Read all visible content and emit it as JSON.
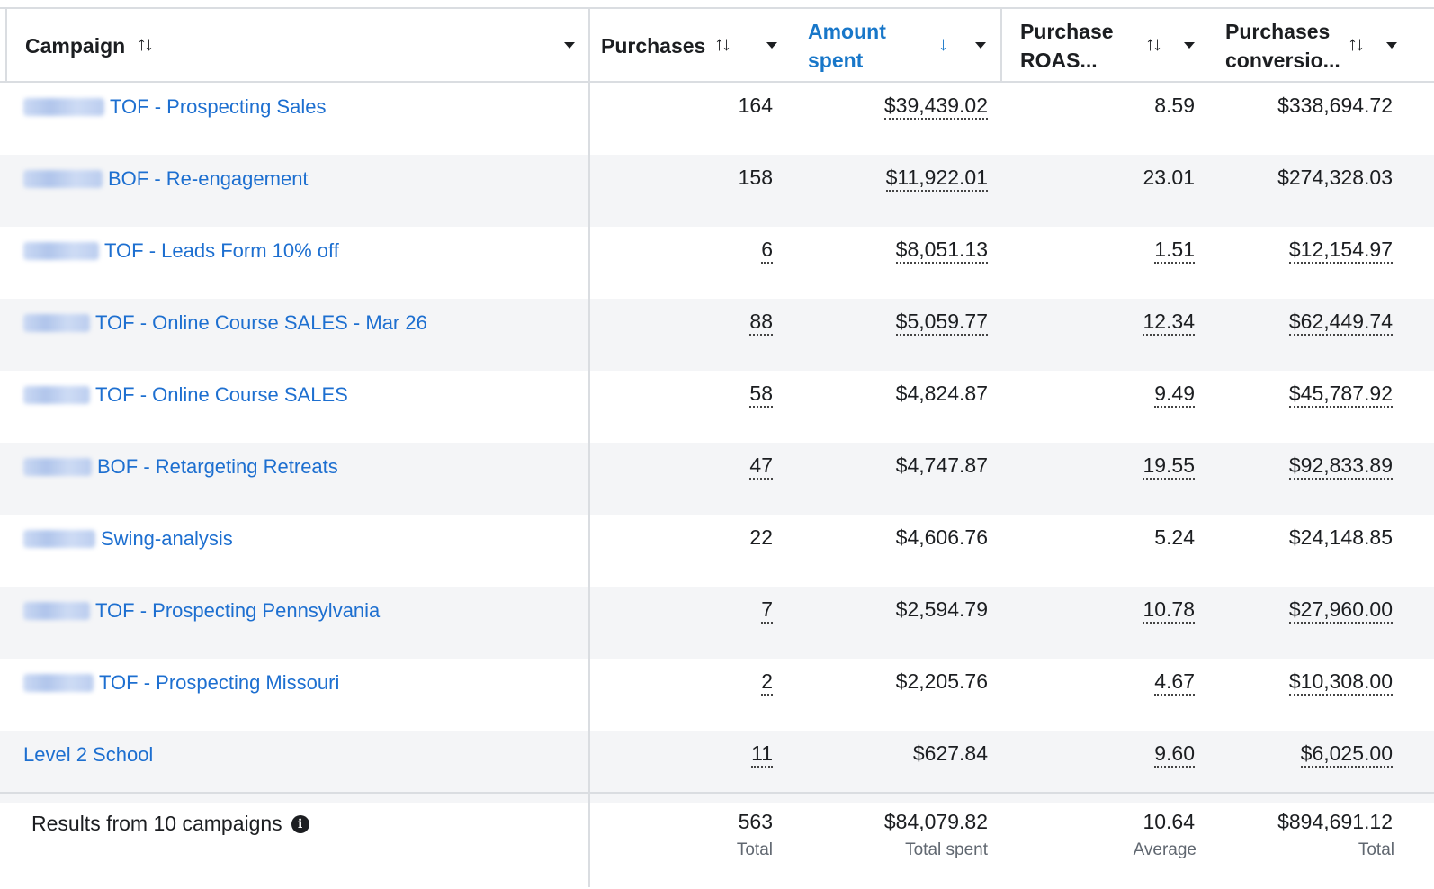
{
  "header": {
    "campaign": "Campaign",
    "purchases": "Purchases",
    "amount_spent_1": "Amount",
    "amount_spent_2": "spent",
    "roas_1": "Purchase",
    "roas_2": "ROAS...",
    "conv_1": "Purchases",
    "conv_2": "conversio..."
  },
  "icons": {
    "sort": "↑↓",
    "sort_desc": "↓"
  },
  "colors": {
    "link": "#1d6fd0",
    "active_header": "#1877c9",
    "alt_row": "#f4f5f7",
    "border": "#dadde1"
  },
  "rows": [
    {
      "campaign": "TOF - Prospecting Sales",
      "purchases": "164",
      "spent": "$39,439.02",
      "roas": "8.59",
      "conv": "$338,694.72"
    },
    {
      "campaign": "BOF - Re-engagement",
      "purchases": "158",
      "spent": "$11,922.01",
      "roas": "23.01",
      "conv": "$274,328.03"
    },
    {
      "campaign": "TOF - Leads Form 10% off",
      "purchases": "6",
      "spent": "$8,051.13",
      "roas": "1.51",
      "conv": "$12,154.97"
    },
    {
      "campaign": "TOF - Online Course SALES - Mar 26",
      "purchases": "88",
      "spent": "$5,059.77",
      "roas": "12.34",
      "conv": "$62,449.74"
    },
    {
      "campaign": "TOF - Online Course SALES",
      "purchases": "58",
      "spent": "$4,824.87",
      "roas": "9.49",
      "conv": "$45,787.92"
    },
    {
      "campaign": "BOF - Retargeting Retreats",
      "purchases": "47",
      "spent": "$4,747.87",
      "roas": "19.55",
      "conv": "$92,833.89"
    },
    {
      "campaign": "Swing-analysis",
      "purchases": "22",
      "spent": "$4,606.76",
      "roas": "5.24",
      "conv": "$24,148.85"
    },
    {
      "campaign": "TOF - Prospecting Pennsylvania",
      "purchases": "7",
      "spent": "$2,594.79",
      "roas": "10.78",
      "conv": "$27,960.00"
    },
    {
      "campaign": "TOF - Prospecting Missouri",
      "purchases": "2",
      "spent": "$2,205.76",
      "roas": "4.67",
      "conv": "$10,308.00"
    },
    {
      "campaign": "Level 2 School",
      "purchases": "11",
      "spent": "$627.84",
      "roas": "9.60",
      "conv": "$6,025.00"
    }
  ],
  "footer": {
    "title": "Results from 10 campaigns",
    "info": "i",
    "purchases": "563",
    "purchases_label": "Total",
    "spent": "$84,079.82",
    "spent_label": "Total spent",
    "roas": "10.64",
    "roas_label": "Average",
    "conv": "$894,691.12",
    "conv_label": "Total"
  }
}
